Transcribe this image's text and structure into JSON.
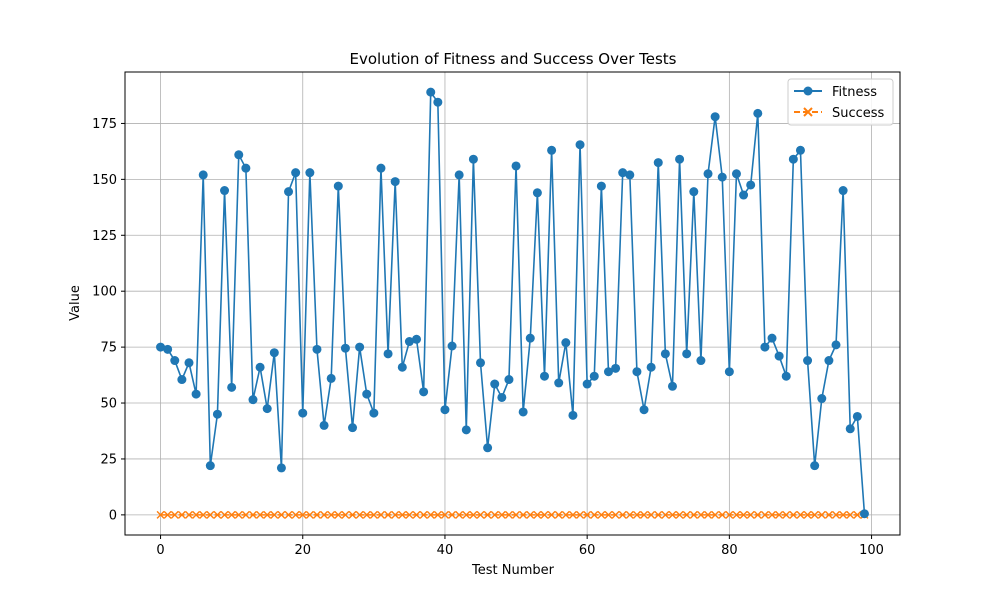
{
  "chart_data": {
    "type": "line",
    "title": "Evolution of Fitness and Success Over Tests",
    "xlabel": "Test Number",
    "ylabel": "Value",
    "xlim": [
      -5,
      104
    ],
    "ylim": [
      -9,
      198
    ],
    "xticks": [
      0,
      20,
      40,
      60,
      80,
      100
    ],
    "yticks": [
      0,
      25,
      50,
      75,
      100,
      125,
      150,
      175
    ],
    "grid": true,
    "legend_position": "top-right",
    "series": [
      {
        "name": "Fitness",
        "color": "#1f77b4",
        "marker": "circle",
        "linestyle": "solid",
        "values": [
          75,
          74,
          69,
          60.5,
          68,
          54,
          152,
          22,
          45,
          145,
          57,
          161,
          155,
          51.5,
          66,
          47.5,
          72.5,
          21,
          144.5,
          153,
          45.5,
          153,
          74,
          40,
          61,
          147,
          74.5,
          39,
          75,
          54,
          45.5,
          155,
          72,
          149,
          66,
          77.5,
          78.5,
          55,
          189,
          184.5,
          47,
          75.5,
          152,
          38,
          159,
          68,
          30,
          58.5,
          52.5,
          60.5,
          156,
          46,
          79,
          144,
          62,
          163,
          59,
          77,
          44.5,
          165.5,
          58.5,
          62,
          147,
          64,
          65.5,
          153,
          152,
          64,
          47,
          66,
          157.5,
          72,
          57.5,
          159,
          72,
          144.5,
          69,
          152.5,
          178,
          151,
          64,
          152.5,
          143,
          147.5,
          179.5,
          75,
          79,
          71,
          62,
          159,
          163,
          69,
          22,
          52,
          69,
          76,
          145,
          38.5,
          44,
          0.5
        ]
      },
      {
        "name": "Success",
        "color": "#ff7f0e",
        "marker": "x",
        "linestyle": "dashed",
        "values": [
          0,
          0,
          0,
          0,
          0,
          0,
          0,
          0,
          0,
          0,
          0,
          0,
          0,
          0,
          0,
          0,
          0,
          0,
          0,
          0,
          0,
          0,
          0,
          0,
          0,
          0,
          0,
          0,
          0,
          0,
          0,
          0,
          0,
          0,
          0,
          0,
          0,
          0,
          0,
          0,
          0,
          0,
          0,
          0,
          0,
          0,
          0,
          0,
          0,
          0,
          0,
          0,
          0,
          0,
          0,
          0,
          0,
          0,
          0,
          0,
          0,
          0,
          0,
          0,
          0,
          0,
          0,
          0,
          0,
          0,
          0,
          0,
          0,
          0,
          0,
          0,
          0,
          0,
          0,
          0,
          0,
          0,
          0,
          0,
          0,
          0,
          0,
          0,
          0,
          0,
          0,
          0,
          0,
          0,
          0,
          0,
          0,
          0,
          0,
          0
        ]
      }
    ]
  }
}
